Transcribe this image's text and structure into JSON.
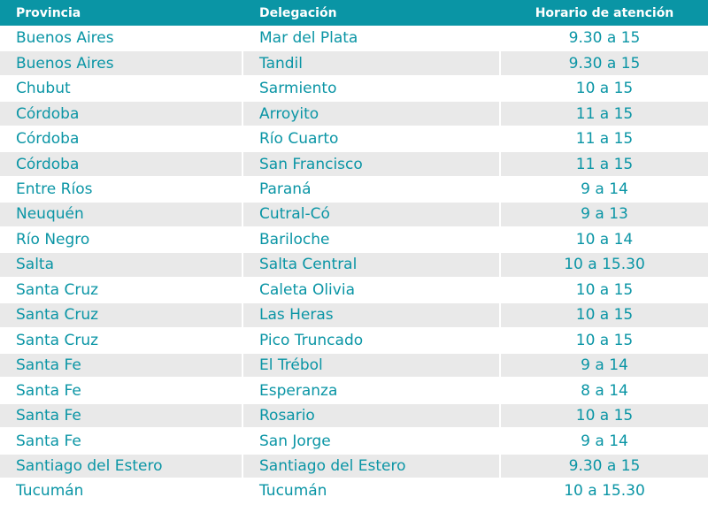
{
  "headers": {
    "provincia": "Provincia",
    "delegacion": "Delegación",
    "horario": "Horario de atención"
  },
  "rows": [
    {
      "provincia": "Buenos Aires",
      "delegacion": "Mar del Plata",
      "horario": "9.30 a 15"
    },
    {
      "provincia": "Buenos Aires",
      "delegacion": "Tandil",
      "horario": "9.30 a 15"
    },
    {
      "provincia": "Chubut",
      "delegacion": "Sarmiento",
      "horario": "10 a 15"
    },
    {
      "provincia": "Córdoba",
      "delegacion": "Arroyito",
      "horario": "11 a 15"
    },
    {
      "provincia": "Córdoba",
      "delegacion": "Río Cuarto",
      "horario": "11 a 15"
    },
    {
      "provincia": "Córdoba",
      "delegacion": "San Francisco",
      "horario": "11 a 15"
    },
    {
      "provincia": "Entre Ríos",
      "delegacion": "Paraná",
      "horario": "9 a 14"
    },
    {
      "provincia": "Neuquén",
      "delegacion": "Cutral-Có",
      "horario": "9 a 13"
    },
    {
      "provincia": "Río Negro",
      "delegacion": "Bariloche",
      "horario": "10 a 14"
    },
    {
      "provincia": "Salta",
      "delegacion": "Salta Central",
      "horario": "10 a 15.30"
    },
    {
      "provincia": "Santa Cruz",
      "delegacion": "Caleta Olivia",
      "horario": "10 a 15"
    },
    {
      "provincia": "Santa Cruz",
      "delegacion": "Las Heras",
      "horario": "10 a 15"
    },
    {
      "provincia": "Santa Cruz",
      "delegacion": "Pico Truncado",
      "horario": "10 a 15"
    },
    {
      "provincia": "Santa Fe",
      "delegacion": "El Trébol",
      "horario": "9 a 14"
    },
    {
      "provincia": "Santa Fe",
      "delegacion": "Esperanza",
      "horario": "8 a 14"
    },
    {
      "provincia": "Santa Fe",
      "delegacion": "Rosario",
      "horario": "10 a 15"
    },
    {
      "provincia": "Santa Fe",
      "delegacion": "San Jorge",
      "horario": "9 a 14"
    },
    {
      "provincia": "Santiago del Estero",
      "delegacion": "Santiago del Estero",
      "horario": "9.30 a 15"
    },
    {
      "provincia": "Tucumán",
      "delegacion": "Tucumán",
      "horario": "10 a 15.30"
    }
  ],
  "colors": {
    "header_bg": "#0a95a5",
    "header_text": "#ffffff",
    "row_text": "#0a95a5",
    "shade": "#e9e9e9"
  }
}
